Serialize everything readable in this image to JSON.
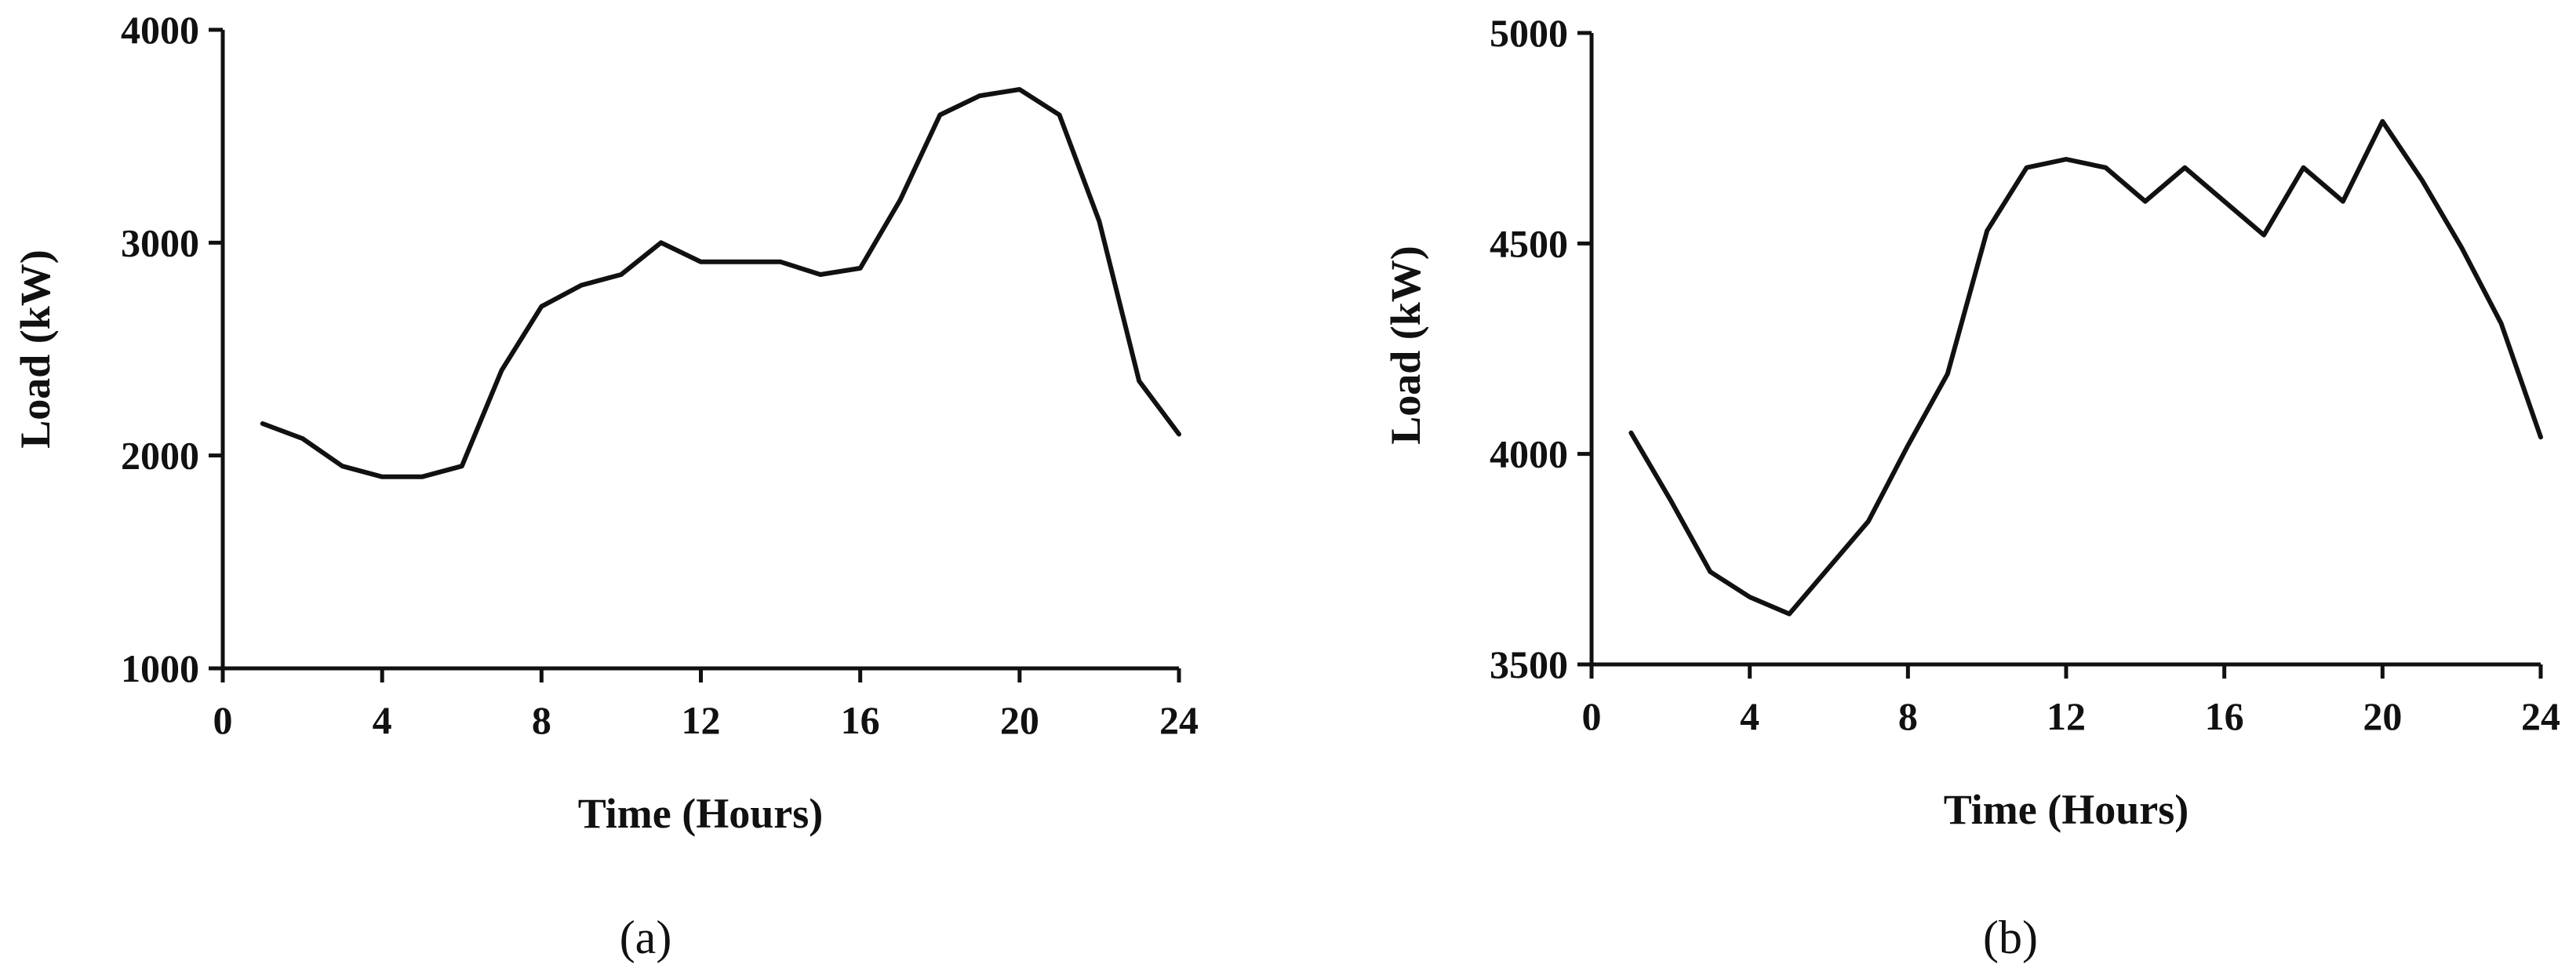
{
  "chart_data": [
    {
      "type": "line",
      "caption": "(a)",
      "xlabel": "Time (Hours)",
      "ylabel": "Load (kW)",
      "xlim": [
        0,
        24
      ],
      "ylim": [
        1000,
        4000
      ],
      "xticks": [
        0,
        4,
        8,
        12,
        16,
        20,
        24
      ],
      "yticks": [
        1000,
        2000,
        3000,
        4000
      ],
      "grid": false,
      "line_color": "#111111",
      "series": [
        {
          "x": [
            1,
            2,
            3,
            4,
            5,
            6,
            7,
            8,
            9,
            10,
            11,
            12,
            13,
            14,
            15,
            16,
            17,
            18,
            19,
            20,
            21,
            22,
            23,
            24
          ],
          "values": [
            2150,
            2080,
            1950,
            1900,
            1900,
            1950,
            2400,
            2700,
            2800,
            2850,
            3000,
            2910,
            2910,
            2910,
            2850,
            2880,
            3200,
            3600,
            3690,
            3720,
            3600,
            3100,
            2350,
            2100
          ]
        }
      ]
    },
    {
      "type": "line",
      "caption": "(b)",
      "xlabel": "Time (Hours)",
      "ylabel": "Load (kW)",
      "xlim": [
        0,
        24
      ],
      "ylim": [
        3500,
        5000
      ],
      "xticks": [
        0,
        4,
        8,
        12,
        16,
        20,
        24
      ],
      "yticks": [
        3500,
        4000,
        4500,
        5000
      ],
      "grid": false,
      "line_color": "#111111",
      "series": [
        {
          "x": [
            1,
            2,
            3,
            4,
            5,
            6,
            7,
            8,
            9,
            10,
            11,
            12,
            13,
            14,
            15,
            16,
            17,
            18,
            19,
            20,
            21,
            22,
            23,
            24
          ],
          "values": [
            4050,
            3890,
            3720,
            3660,
            3620,
            3730,
            3840,
            4020,
            4190,
            4530,
            4680,
            4700,
            4680,
            4600,
            4680,
            4600,
            4520,
            4680,
            4600,
            4790,
            4650,
            4490,
            4310,
            4040
          ]
        }
      ]
    }
  ]
}
